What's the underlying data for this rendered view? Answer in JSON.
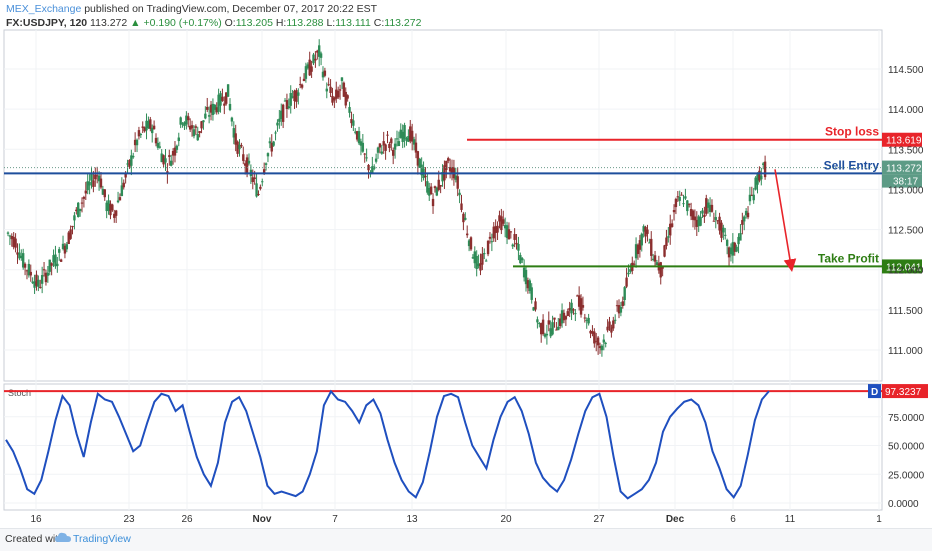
{
  "header": {
    "publisher": "MEX_Exchange",
    "published_text": "published on TradingView.com, December 07, 2017 20:22 EST",
    "symbol": "FX:USDJPY, 120",
    "last": "113.272",
    "change_arrow": "▲",
    "change": "+0.190 (+0.17%)",
    "o_label": "O:",
    "o": "113.205",
    "h_label": "H:",
    "h": "113.288",
    "l_label": "L:",
    "l": "113.111",
    "c_label": "C:",
    "c": "113.272"
  },
  "footer": {
    "created_with": "Created with",
    "brand": "TradingView"
  },
  "chart_data": [
    {
      "type": "candlestick",
      "x_tick_labels": [
        "16",
        "23",
        "26",
        "Nov",
        "7",
        "13",
        "20",
        "27",
        "Dec",
        "6",
        "11",
        "1"
      ],
      "y_tick_labels": [
        "114.500",
        "114.000",
        "113.500",
        "113.000",
        "112.500",
        "112.000",
        "111.500",
        "111.000"
      ],
      "ylim": [
        110.8,
        115.2
      ],
      "close_path": [
        112.45,
        112.35,
        112.1,
        111.95,
        111.8,
        111.95,
        112.1,
        112.2,
        112.4,
        112.7,
        112.9,
        113.1,
        113.2,
        112.8,
        112.7,
        113.0,
        113.3,
        113.6,
        113.75,
        113.8,
        113.5,
        113.3,
        113.5,
        113.9,
        113.8,
        113.7,
        113.9,
        114.0,
        114.1,
        114.2,
        113.6,
        113.4,
        113.2,
        112.95,
        113.4,
        113.6,
        113.9,
        114.1,
        114.2,
        114.4,
        114.55,
        114.7,
        114.3,
        114.1,
        114.3,
        114.0,
        113.7,
        113.4,
        113.2,
        113.5,
        113.6,
        113.5,
        113.7,
        113.7,
        113.4,
        113.1,
        112.9,
        113.1,
        113.3,
        113.2,
        112.7,
        112.3,
        112.0,
        112.2,
        112.5,
        112.6,
        112.45,
        112.3,
        112.0,
        111.7,
        111.3,
        111.25,
        111.3,
        111.4,
        111.45,
        111.6,
        111.5,
        111.2,
        111.05,
        111.2,
        111.4,
        111.6,
        112.0,
        112.3,
        112.5,
        112.2,
        112.0,
        112.4,
        112.8,
        112.9,
        112.7,
        112.6,
        112.8,
        112.7,
        112.5,
        112.2,
        112.3,
        112.6,
        112.9,
        113.2,
        113.27
      ],
      "levels": [
        {
          "label": "Stop loss",
          "value": 113.619,
          "value_label": "113.619",
          "color": "#e8242a"
        },
        {
          "label": "Sell Entry",
          "value": 113.2,
          "value_label": "",
          "color": "#1e4e9c"
        },
        {
          "label": "Take Profit",
          "value": 112.041,
          "value_label": "112.041",
          "color": "#2e7d14"
        }
      ],
      "last_price_label": "113.272",
      "countdown_label": "38:17",
      "arrow_color": "#e8242a",
      "up_color": "#2e8b57",
      "down_color": "#8b2e2e"
    },
    {
      "type": "line",
      "name": "Stoch",
      "y_tick_labels": [
        "75.0000",
        "50.0000",
        "25.0000",
        "0.0000"
      ],
      "ylim": [
        0,
        100
      ],
      "values": [
        55,
        45,
        30,
        12,
        8,
        20,
        45,
        72,
        93,
        85,
        60,
        40,
        70,
        95,
        90,
        88,
        75,
        60,
        45,
        50,
        70,
        88,
        95,
        93,
        80,
        85,
        62,
        40,
        25,
        15,
        35,
        70,
        88,
        92,
        80,
        60,
        40,
        15,
        8,
        10,
        8,
        6,
        10,
        25,
        45,
        85,
        97,
        90,
        88,
        80,
        70,
        85,
        90,
        78,
        55,
        35,
        20,
        10,
        5,
        18,
        45,
        75,
        93,
        95,
        92,
        70,
        50,
        40,
        30,
        55,
        75,
        88,
        92,
        80,
        60,
        35,
        22,
        15,
        10,
        20,
        38,
        60,
        80,
        92,
        95,
        75,
        40,
        10,
        4,
        8,
        12,
        20,
        35,
        62,
        75,
        82,
        88,
        90,
        85,
        70,
        45,
        30,
        12,
        5,
        15,
        42,
        72,
        90,
        97.3
      ],
      "reference_level": 97.3237,
      "last_value_label": "97.3237",
      "legend_marker": "D",
      "line_color": "#1f4fbf",
      "ref_color": "#e8242a"
    }
  ]
}
